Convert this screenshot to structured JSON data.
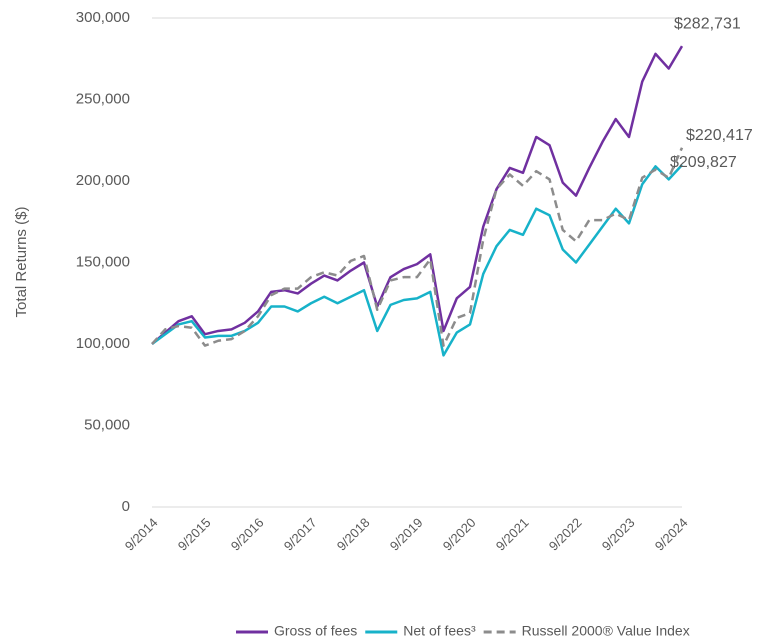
{
  "chart_data": {
    "type": "line",
    "y_label": "Total Returns ($)",
    "categories": [
      "9/2014",
      null,
      null,
      null,
      "9/2015",
      null,
      null,
      null,
      "9/2016",
      null,
      null,
      null,
      "9/2017",
      null,
      null,
      null,
      "9/2018",
      null,
      null,
      null,
      "9/2019",
      null,
      null,
      null,
      "9/2020",
      null,
      null,
      null,
      "9/2021",
      null,
      null,
      null,
      "9/2022",
      null,
      null,
      null,
      "9/2023",
      null,
      null,
      null,
      "9/2024"
    ],
    "ylim": [
      0,
      300000
    ],
    "yticks": [
      0,
      {
        "value": 50000,
        "label": "50,000"
      },
      {
        "value": 100000,
        "label": "100,000"
      },
      {
        "value": 150000,
        "label": "150,000"
      },
      {
        "value": 200000,
        "label": "200,000"
      },
      {
        "value": 250000,
        "label": "250,000"
      },
      {
        "value": 300000,
        "label": "300,000"
      }
    ],
    "grid": false,
    "legend": "bottom",
    "series": [
      {
        "name": "Gross of fees",
        "color": "#7030a0",
        "dash": false,
        "values": [
          100000,
          107000,
          114000,
          117000,
          106000,
          108000,
          109000,
          113000,
          120000,
          132000,
          133000,
          131000,
          137000,
          142000,
          139000,
          145000,
          150000,
          123000,
          141000,
          146000,
          149000,
          155000,
          108000,
          128000,
          135000,
          172000,
          195000,
          208000,
          205000,
          227000,
          222000,
          199000,
          191000,
          208000,
          224000,
          238000,
          227000,
          261000,
          278000,
          269000,
          282731
        ],
        "value_labels": [
          null,
          null,
          null,
          null,
          null,
          null,
          null,
          null,
          null,
          null,
          null,
          null,
          null,
          null,
          null,
          null,
          null,
          null,
          null,
          null,
          null,
          null,
          null,
          null,
          null,
          null,
          null,
          null,
          null,
          null,
          null,
          null,
          null,
          null,
          null,
          null,
          null,
          null,
          null,
          null,
          "$282,731"
        ]
      },
      {
        "name": "Net of fees³",
        "color": "#17b2c9",
        "dash": false,
        "values": [
          100000,
          106000,
          112000,
          114000,
          104000,
          105000,
          105000,
          108000,
          113000,
          123000,
          123000,
          120000,
          125000,
          129000,
          125000,
          129000,
          133000,
          108000,
          124000,
          127000,
          128000,
          132000,
          93000,
          107000,
          112000,
          143000,
          160000,
          170000,
          167000,
          183000,
          179000,
          158000,
          150000,
          161000,
          172000,
          183000,
          174000,
          198000,
          209000,
          201000,
          209827
        ],
        "value_labels": [
          null,
          null,
          null,
          null,
          null,
          null,
          null,
          null,
          null,
          null,
          null,
          null,
          null,
          null,
          null,
          null,
          null,
          null,
          null,
          null,
          null,
          null,
          null,
          null,
          null,
          null,
          null,
          null,
          null,
          null,
          null,
          null,
          null,
          null,
          null,
          null,
          null,
          null,
          null,
          null,
          "$209,827"
        ]
      },
      {
        "name": "Russell 2000® Value Index",
        "color": "#8c8c8c",
        "dash": true,
        "values": [
          100000,
          109000,
          111000,
          110000,
          99000,
          102000,
          103000,
          108000,
          117000,
          130000,
          134000,
          134000,
          141000,
          144000,
          142000,
          151000,
          154000,
          121000,
          139000,
          141000,
          141000,
          152000,
          99000,
          116000,
          119000,
          164000,
          195000,
          204000,
          197000,
          206000,
          201000,
          170000,
          163000,
          176000,
          176000,
          180000,
          176000,
          202000,
          207000,
          202000,
          220417
        ],
        "value_labels": [
          null,
          null,
          null,
          null,
          null,
          null,
          null,
          null,
          null,
          null,
          null,
          null,
          null,
          null,
          null,
          null,
          null,
          null,
          null,
          null,
          null,
          null,
          null,
          null,
          null,
          null,
          null,
          null,
          null,
          null,
          null,
          null,
          null,
          null,
          null,
          null,
          null,
          null,
          null,
          null,
          "$220,417"
        ]
      }
    ]
  }
}
